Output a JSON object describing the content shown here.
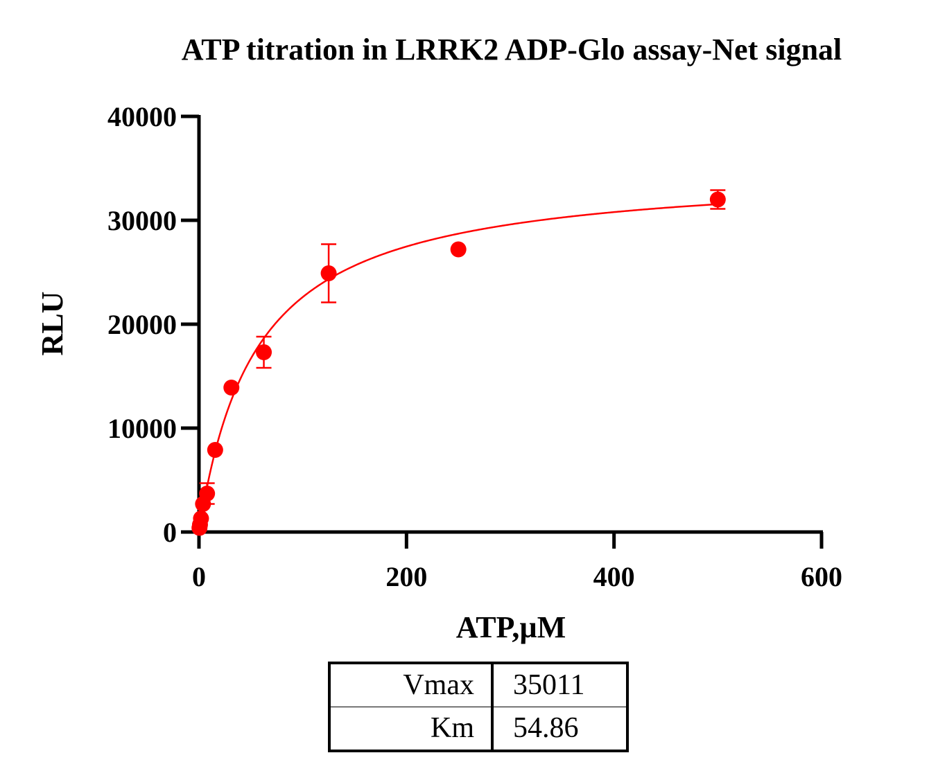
{
  "chart_data": {
    "type": "scatter",
    "title": "ATP titration in LRRK2 ADP-Glo assay-Net signal",
    "xlabel": "ATP,µM",
    "ylabel": "RLU",
    "xlim": [
      0,
      600
    ],
    "ylim": [
      0,
      40000
    ],
    "x_ticks": [
      0,
      200,
      400,
      600
    ],
    "y_ticks": [
      0,
      10000,
      20000,
      30000,
      40000
    ],
    "grid": false,
    "color": "#ff0000",
    "points": [
      {
        "x": 0.49,
        "y": 400,
        "err": 0
      },
      {
        "x": 0.98,
        "y": 700,
        "err": 0
      },
      {
        "x": 1.95,
        "y": 1300,
        "err": 0
      },
      {
        "x": 3.9,
        "y": 2700,
        "err": 0
      },
      {
        "x": 7.8,
        "y": 3700,
        "err": 1000
      },
      {
        "x": 15.6,
        "y": 7900,
        "err": 0
      },
      {
        "x": 31.25,
        "y": 13900,
        "err": 0
      },
      {
        "x": 62.5,
        "y": 17300,
        "err": 1500
      },
      {
        "x": 125,
        "y": 24900,
        "err": 2800
      },
      {
        "x": 250,
        "y": 27200,
        "err": 0
      },
      {
        "x": 500,
        "y": 32000,
        "err": 900
      }
    ],
    "fit": {
      "model": "michaelis-menten",
      "vmax": 35011,
      "km": 54.86,
      "x_range": [
        0,
        500
      ]
    }
  },
  "params": [
    {
      "name": "Vmax",
      "value": "35011"
    },
    {
      "name": "Km",
      "value": "54.86"
    }
  ]
}
